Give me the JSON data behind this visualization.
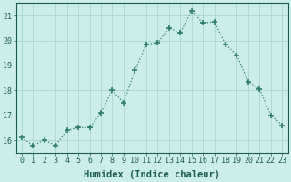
{
  "x": [
    0,
    1,
    2,
    3,
    4,
    5,
    6,
    7,
    8,
    9,
    10,
    11,
    12,
    13,
    14,
    15,
    16,
    17,
    18,
    19,
    20,
    21,
    22,
    23
  ],
  "y": [
    16.1,
    15.8,
    16.0,
    15.8,
    16.4,
    16.5,
    16.5,
    17.1,
    18.0,
    17.5,
    18.8,
    19.85,
    19.9,
    20.5,
    20.3,
    21.2,
    20.7,
    20.75,
    19.85,
    19.4,
    18.35,
    18.05,
    17.0,
    16.6
  ],
  "line_color": "#2e7d6e",
  "marker": "+",
  "marker_size": 4,
  "marker_lw": 1.2,
  "line_width": 0.9,
  "bg_color": "#cceee8",
  "grid_color": "#b0d8d0",
  "xlabel": "Humidex (Indice chaleur)",
  "ylim": [
    15.5,
    21.5
  ],
  "xlim": [
    -0.5,
    23.5
  ],
  "yticks": [
    16,
    17,
    18,
    19,
    20,
    21
  ],
  "xticks": [
    0,
    1,
    2,
    3,
    4,
    5,
    6,
    7,
    8,
    9,
    10,
    11,
    12,
    13,
    14,
    15,
    16,
    17,
    18,
    19,
    20,
    21,
    22,
    23
  ],
  "font_color": "#1a5c50",
  "tick_label_size": 6,
  "xlabel_size": 7.5
}
